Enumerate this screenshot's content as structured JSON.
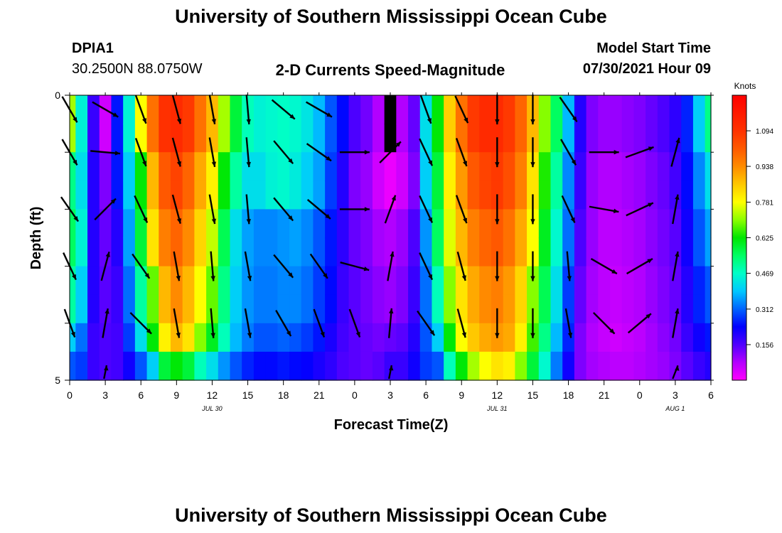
{
  "page": {
    "title_top": "University of Southern Mississippi Ocean Cube",
    "title_bottom": "University of Southern Mississippi Ocean Cube",
    "station_id": "DPIA1",
    "station_coords": "30.2500N  88.0750W",
    "model_label": "Model Start Time",
    "model_time": "07/30/2021 Hour 09"
  },
  "chart_data": {
    "type": "heatmap",
    "title": "2-D Currents Speed-Magnitude",
    "xlabel": "Forecast Time(Z)",
    "ylabel": "Depth (ft)",
    "ylim": [
      0,
      5
    ],
    "xlim_hours": [
      0,
      54
    ],
    "x_tick_labels": [
      "0",
      "3",
      "6",
      "9",
      "12",
      "15",
      "18",
      "21",
      "0",
      "3",
      "6",
      "9",
      "12",
      "15",
      "18",
      "21",
      "0",
      "3",
      "6"
    ],
    "y_tick_labels": [
      "0",
      "5"
    ],
    "date_labels": [
      {
        "hour": 12,
        "label": "JUL 30"
      },
      {
        "hour": 36,
        "label": "JUL 31"
      },
      {
        "hour": 51,
        "label": "AUG 1"
      }
    ],
    "colorbar": {
      "unit": "Knots",
      "min": 0,
      "max": 1.25,
      "ticks": [
        "1.094",
        "0.938",
        "0.781",
        "0.625",
        "0.469",
        "0.312",
        "0.156"
      ]
    },
    "depth_layers_ft": [
      0.25,
      0.75,
      1.25,
      1.75,
      2.25,
      2.75,
      3.25,
      3.75,
      4.25,
      4.75
    ],
    "speed_knots_by_hour": [
      {
        "hour": 0,
        "profile": [
          0.72,
          0.72,
          0.52,
          0.52,
          0.55,
          0.55,
          0.5,
          0.5,
          0.4,
          0.3
        ]
      },
      {
        "hour": 1,
        "profile": [
          0.45,
          0.45,
          0.42,
          0.42,
          0.45,
          0.45,
          0.4,
          0.4,
          0.32,
          0.28
        ]
      },
      {
        "hour": 2,
        "profile": [
          0.18,
          0.18,
          0.2,
          0.2,
          0.2,
          0.2,
          0.2,
          0.2,
          0.18,
          0.18
        ]
      },
      {
        "hour": 3,
        "profile": [
          0.05,
          0.05,
          0.12,
          0.12,
          0.14,
          0.14,
          0.15,
          0.15,
          0.16,
          0.16
        ]
      },
      {
        "hour": 4,
        "profile": [
          0.25,
          0.25,
          0.25,
          0.25,
          0.2,
          0.2,
          0.18,
          0.18,
          0.17,
          0.17
        ]
      },
      {
        "hour": 5,
        "profile": [
          0.45,
          0.45,
          0.4,
          0.4,
          0.36,
          0.36,
          0.32,
          0.32,
          0.28,
          0.22
        ]
      },
      {
        "hour": 6,
        "profile": [
          0.78,
          0.78,
          0.62,
          0.62,
          0.58,
          0.58,
          0.5,
          0.5,
          0.42,
          0.3
        ]
      },
      {
        "hour": 7,
        "profile": [
          0.98,
          0.98,
          0.88,
          0.88,
          0.82,
          0.82,
          0.68,
          0.68,
          0.62,
          0.4
        ]
      },
      {
        "hour": 8,
        "profile": [
          1.1,
          1.1,
          1.02,
          1.02,
          0.96,
          0.96,
          0.88,
          0.88,
          0.8,
          0.58
        ]
      },
      {
        "hour": 9,
        "profile": [
          1.12,
          1.12,
          1.06,
          1.06,
          1.0,
          1.0,
          0.94,
          0.94,
          0.88,
          0.62
        ]
      },
      {
        "hour": 10,
        "profile": [
          1.08,
          1.08,
          1.0,
          1.0,
          0.94,
          0.94,
          0.88,
          0.88,
          0.82,
          0.58
        ]
      },
      {
        "hour": 11,
        "profile": [
          0.98,
          0.98,
          0.9,
          0.9,
          0.84,
          0.84,
          0.78,
          0.78,
          0.7,
          0.48
        ]
      },
      {
        "hour": 12,
        "profile": [
          0.88,
          0.88,
          0.8,
          0.8,
          0.74,
          0.74,
          0.68,
          0.68,
          0.6,
          0.42
        ]
      },
      {
        "hour": 13,
        "profile": [
          0.72,
          0.72,
          0.62,
          0.62,
          0.56,
          0.56,
          0.52,
          0.52,
          0.48,
          0.35
        ]
      },
      {
        "hour": 14,
        "profile": [
          0.58,
          0.58,
          0.5,
          0.5,
          0.42,
          0.42,
          0.4,
          0.4,
          0.38,
          0.3
        ]
      },
      {
        "hour": 15,
        "profile": [
          0.48,
          0.48,
          0.42,
          0.42,
          0.36,
          0.36,
          0.35,
          0.35,
          0.33,
          0.26
        ]
      },
      {
        "hour": 16,
        "profile": [
          0.45,
          0.45,
          0.42,
          0.42,
          0.34,
          0.34,
          0.33,
          0.33,
          0.3,
          0.24
        ]
      },
      {
        "hour": 17,
        "profile": [
          0.46,
          0.46,
          0.45,
          0.45,
          0.34,
          0.34,
          0.33,
          0.33,
          0.3,
          0.24
        ]
      },
      {
        "hour": 18,
        "profile": [
          0.47,
          0.47,
          0.46,
          0.46,
          0.35,
          0.35,
          0.34,
          0.34,
          0.31,
          0.25
        ]
      },
      {
        "hour": 19,
        "profile": [
          0.46,
          0.46,
          0.44,
          0.44,
          0.36,
          0.36,
          0.34,
          0.34,
          0.3,
          0.24
        ]
      },
      {
        "hour": 20,
        "profile": [
          0.43,
          0.43,
          0.4,
          0.4,
          0.34,
          0.34,
          0.32,
          0.32,
          0.28,
          0.23
        ]
      },
      {
        "hour": 21,
        "profile": [
          0.38,
          0.38,
          0.36,
          0.36,
          0.3,
          0.3,
          0.28,
          0.28,
          0.25,
          0.21
        ]
      },
      {
        "hour": 22,
        "profile": [
          0.3,
          0.3,
          0.28,
          0.28,
          0.25,
          0.25,
          0.24,
          0.24,
          0.21,
          0.19
        ]
      },
      {
        "hour": 23,
        "profile": [
          0.24,
          0.24,
          0.2,
          0.2,
          0.19,
          0.19,
          0.18,
          0.18,
          0.17,
          0.16
        ]
      },
      {
        "hour": 24,
        "profile": [
          0.16,
          0.16,
          0.12,
          0.12,
          0.14,
          0.14,
          0.15,
          0.15,
          0.15,
          0.15
        ]
      },
      {
        "hour": 25,
        "profile": [
          0.13,
          0.13,
          0.1,
          0.1,
          0.12,
          0.12,
          0.13,
          0.13,
          0.14,
          0.14
        ]
      },
      {
        "hour": 26,
        "profile": [
          0.08,
          0.08,
          0.05,
          0.05,
          0.09,
          0.09,
          0.11,
          0.11,
          0.13,
          0.15
        ]
      },
      {
        "hour": 27,
        "profile": [
          1.3,
          1.3,
          0.02,
          0.02,
          0.08,
          0.08,
          0.1,
          0.1,
          0.14,
          0.18
        ]
      },
      {
        "hour": 28,
        "profile": [
          0.08,
          0.08,
          0.05,
          0.05,
          0.1,
          0.1,
          0.12,
          0.12,
          0.15,
          0.18
        ]
      },
      {
        "hour": 29,
        "profile": [
          0.14,
          0.14,
          0.12,
          0.12,
          0.16,
          0.16,
          0.18,
          0.18,
          0.2,
          0.22
        ]
      },
      {
        "hour": 30,
        "profile": [
          0.42,
          0.42,
          0.4,
          0.4,
          0.35,
          0.35,
          0.32,
          0.32,
          0.3,
          0.28
        ]
      },
      {
        "hour": 31,
        "profile": [
          0.62,
          0.62,
          0.58,
          0.58,
          0.55,
          0.55,
          0.48,
          0.48,
          0.4,
          0.3
        ]
      },
      {
        "hour": 32,
        "profile": [
          0.85,
          0.85,
          0.8,
          0.8,
          0.76,
          0.76,
          0.7,
          0.7,
          0.62,
          0.48
        ]
      },
      {
        "hour": 33,
        "profile": [
          0.98,
          0.98,
          0.92,
          0.92,
          0.88,
          0.88,
          0.82,
          0.82,
          0.78,
          0.62
        ]
      },
      {
        "hour": 34,
        "profile": [
          1.08,
          1.08,
          1.02,
          1.02,
          0.96,
          0.96,
          0.9,
          0.9,
          0.86,
          0.72
        ]
      },
      {
        "hour": 35,
        "profile": [
          1.12,
          1.12,
          1.06,
          1.06,
          1.0,
          1.0,
          0.94,
          0.94,
          0.9,
          0.78
        ]
      },
      {
        "hour": 36,
        "profile": [
          1.12,
          1.12,
          1.08,
          1.08,
          1.02,
          1.02,
          0.96,
          0.96,
          0.92,
          0.82
        ]
      },
      {
        "hour": 37,
        "profile": [
          1.08,
          1.08,
          1.04,
          1.04,
          0.98,
          0.98,
          0.92,
          0.92,
          0.9,
          0.8
        ]
      },
      {
        "hour": 38,
        "profile": [
          1.0,
          1.0,
          0.96,
          0.96,
          0.9,
          0.9,
          0.84,
          0.84,
          0.8,
          0.7
        ]
      },
      {
        "hour": 39,
        "profile": [
          0.88,
          0.88,
          0.82,
          0.82,
          0.78,
          0.78,
          0.7,
          0.7,
          0.66,
          0.58
        ]
      },
      {
        "hour": 40,
        "profile": [
          0.7,
          0.7,
          0.64,
          0.64,
          0.6,
          0.6,
          0.56,
          0.56,
          0.52,
          0.46
        ]
      },
      {
        "hour": 41,
        "profile": [
          0.55,
          0.55,
          0.5,
          0.5,
          0.46,
          0.46,
          0.42,
          0.42,
          0.38,
          0.33
        ]
      },
      {
        "hour": 42,
        "profile": [
          0.38,
          0.38,
          0.34,
          0.34,
          0.32,
          0.32,
          0.28,
          0.28,
          0.26,
          0.22
        ]
      },
      {
        "hour": 43,
        "profile": [
          0.2,
          0.2,
          0.18,
          0.18,
          0.16,
          0.16,
          0.14,
          0.14,
          0.12,
          0.12
        ]
      },
      {
        "hour": 44,
        "profile": [
          0.12,
          0.12,
          0.1,
          0.1,
          0.1,
          0.1,
          0.09,
          0.09,
          0.08,
          0.09
        ]
      },
      {
        "hour": 45,
        "profile": [
          0.1,
          0.1,
          0.08,
          0.08,
          0.07,
          0.07,
          0.07,
          0.07,
          0.06,
          0.08
        ]
      },
      {
        "hour": 46,
        "profile": [
          0.1,
          0.1,
          0.08,
          0.08,
          0.07,
          0.07,
          0.06,
          0.06,
          0.05,
          0.07
        ]
      },
      {
        "hour": 47,
        "profile": [
          0.11,
          0.11,
          0.09,
          0.09,
          0.08,
          0.08,
          0.07,
          0.07,
          0.06,
          0.07
        ]
      },
      {
        "hour": 48,
        "profile": [
          0.12,
          0.12,
          0.1,
          0.1,
          0.09,
          0.09,
          0.08,
          0.08,
          0.07,
          0.08
        ]
      },
      {
        "hour": 49,
        "profile": [
          0.14,
          0.14,
          0.12,
          0.12,
          0.11,
          0.11,
          0.1,
          0.1,
          0.09,
          0.09
        ]
      },
      {
        "hour": 50,
        "profile": [
          0.16,
          0.16,
          0.14,
          0.14,
          0.13,
          0.13,
          0.12,
          0.12,
          0.11,
          0.1
        ]
      },
      {
        "hour": 51,
        "profile": [
          0.19,
          0.19,
          0.17,
          0.17,
          0.15,
          0.15,
          0.14,
          0.14,
          0.13,
          0.12
        ]
      },
      {
        "hour": 52,
        "profile": [
          0.26,
          0.26,
          0.24,
          0.24,
          0.22,
          0.22,
          0.2,
          0.2,
          0.18,
          0.15
        ]
      },
      {
        "hour": 53,
        "profile": [
          0.4,
          0.4,
          0.34,
          0.34,
          0.3,
          0.3,
          0.26,
          0.26,
          0.22,
          0.18
        ]
      },
      {
        "hour": 54,
        "profile": [
          0.52,
          0.52,
          0.42,
          0.42,
          0.36,
          0.36,
          0.3,
          0.3,
          0.25,
          0.2
        ]
      }
    ],
    "vector_depths_ft": [
      0.25,
      1.0,
      2.0,
      3.0,
      4.0,
      5.0
    ],
    "vector_hours": [
      0,
      3,
      6,
      9,
      12,
      15,
      18,
      21,
      24,
      27,
      30,
      33,
      36,
      39,
      42,
      45,
      48,
      51
    ],
    "vectors_dir_deg_by_depth": [
      [
        150,
        120,
        160,
        165,
        170,
        175,
        130,
        120,
        null,
        null,
        160,
        155,
        180,
        180,
        145,
        null,
        null,
        null
      ],
      [
        150,
        95,
        160,
        165,
        170,
        175,
        140,
        125,
        90,
        45,
        155,
        160,
        180,
        180,
        150,
        90,
        70,
        15
      ],
      [
        145,
        45,
        155,
        165,
        170,
        175,
        140,
        130,
        90,
        20,
        155,
        160,
        180,
        180,
        155,
        100,
        65,
        10
      ],
      [
        155,
        15,
        145,
        170,
        175,
        170,
        140,
        145,
        105,
        10,
        155,
        165,
        180,
        180,
        175,
        120,
        60,
        10
      ],
      [
        160,
        10,
        135,
        170,
        175,
        170,
        150,
        160,
        160,
        5,
        145,
        165,
        180,
        180,
        170,
        135,
        50,
        10
      ],
      [
        null,
        5,
        null,
        null,
        null,
        null,
        null,
        null,
        null,
        5,
        null,
        null,
        null,
        null,
        null,
        null,
        null,
        10
      ]
    ]
  }
}
